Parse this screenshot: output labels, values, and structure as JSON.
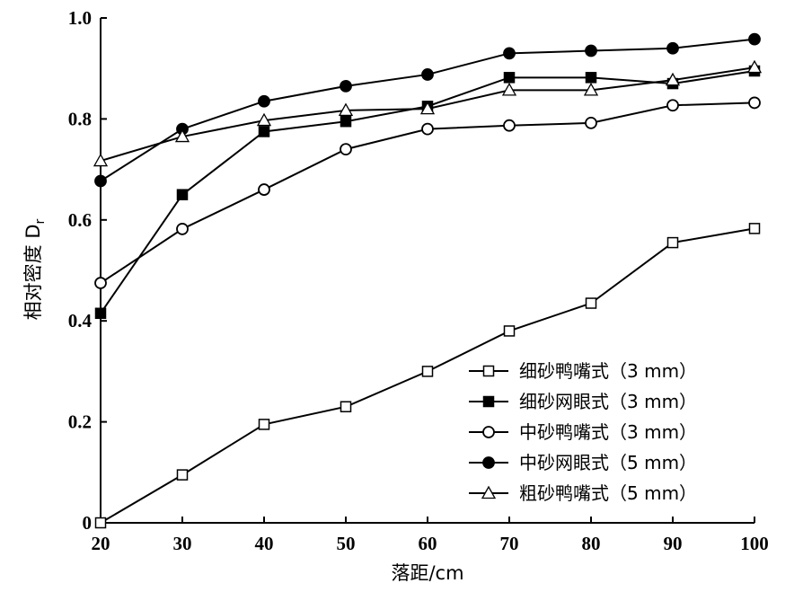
{
  "chart_data": {
    "type": "line",
    "xlabel": "落距/cm",
    "ylabel": "相对密度 D",
    "ylabel_sub": "r",
    "xlim": [
      20,
      100
    ],
    "ylim": [
      0,
      1.0
    ],
    "xticks": [
      20,
      30,
      40,
      50,
      60,
      70,
      80,
      90,
      100
    ],
    "yticks": [
      0,
      0.2,
      0.4,
      0.6,
      0.8,
      1.0
    ],
    "ytick_labels": [
      "0",
      "0.2",
      "0.4",
      "0.6",
      "0.8",
      "1.0"
    ],
    "grid": false,
    "legend_position": "bottom-right",
    "x": [
      20,
      30,
      40,
      50,
      60,
      70,
      80,
      90,
      100
    ],
    "series": [
      {
        "name": "细砂鸭嘴式（3 mm）",
        "marker": "square-open",
        "values": [
          0.0,
          0.095,
          0.195,
          0.23,
          0.3,
          0.38,
          0.435,
          0.555,
          0.583
        ]
      },
      {
        "name": "细砂网眼式（3 mm）",
        "marker": "square-filled",
        "values": [
          0.415,
          0.65,
          0.775,
          0.795,
          0.825,
          0.882,
          0.882,
          0.87,
          0.895
        ]
      },
      {
        "name": "中砂鸭嘴式（3 mm）",
        "marker": "circle-open",
        "values": [
          0.475,
          0.582,
          0.66,
          0.74,
          0.78,
          0.787,
          0.792,
          0.827,
          0.832
        ]
      },
      {
        "name": "中砂网眼式（5 mm）",
        "marker": "circle-filled",
        "values": [
          0.677,
          0.78,
          0.835,
          0.865,
          0.888,
          0.93,
          0.935,
          0.94,
          0.958
        ]
      },
      {
        "name": "粗砂鸭嘴式（5 mm）",
        "marker": "triangle-open",
        "values": [
          0.717,
          0.765,
          0.797,
          0.817,
          0.82,
          0.857,
          0.857,
          0.877,
          0.902
        ]
      }
    ]
  }
}
